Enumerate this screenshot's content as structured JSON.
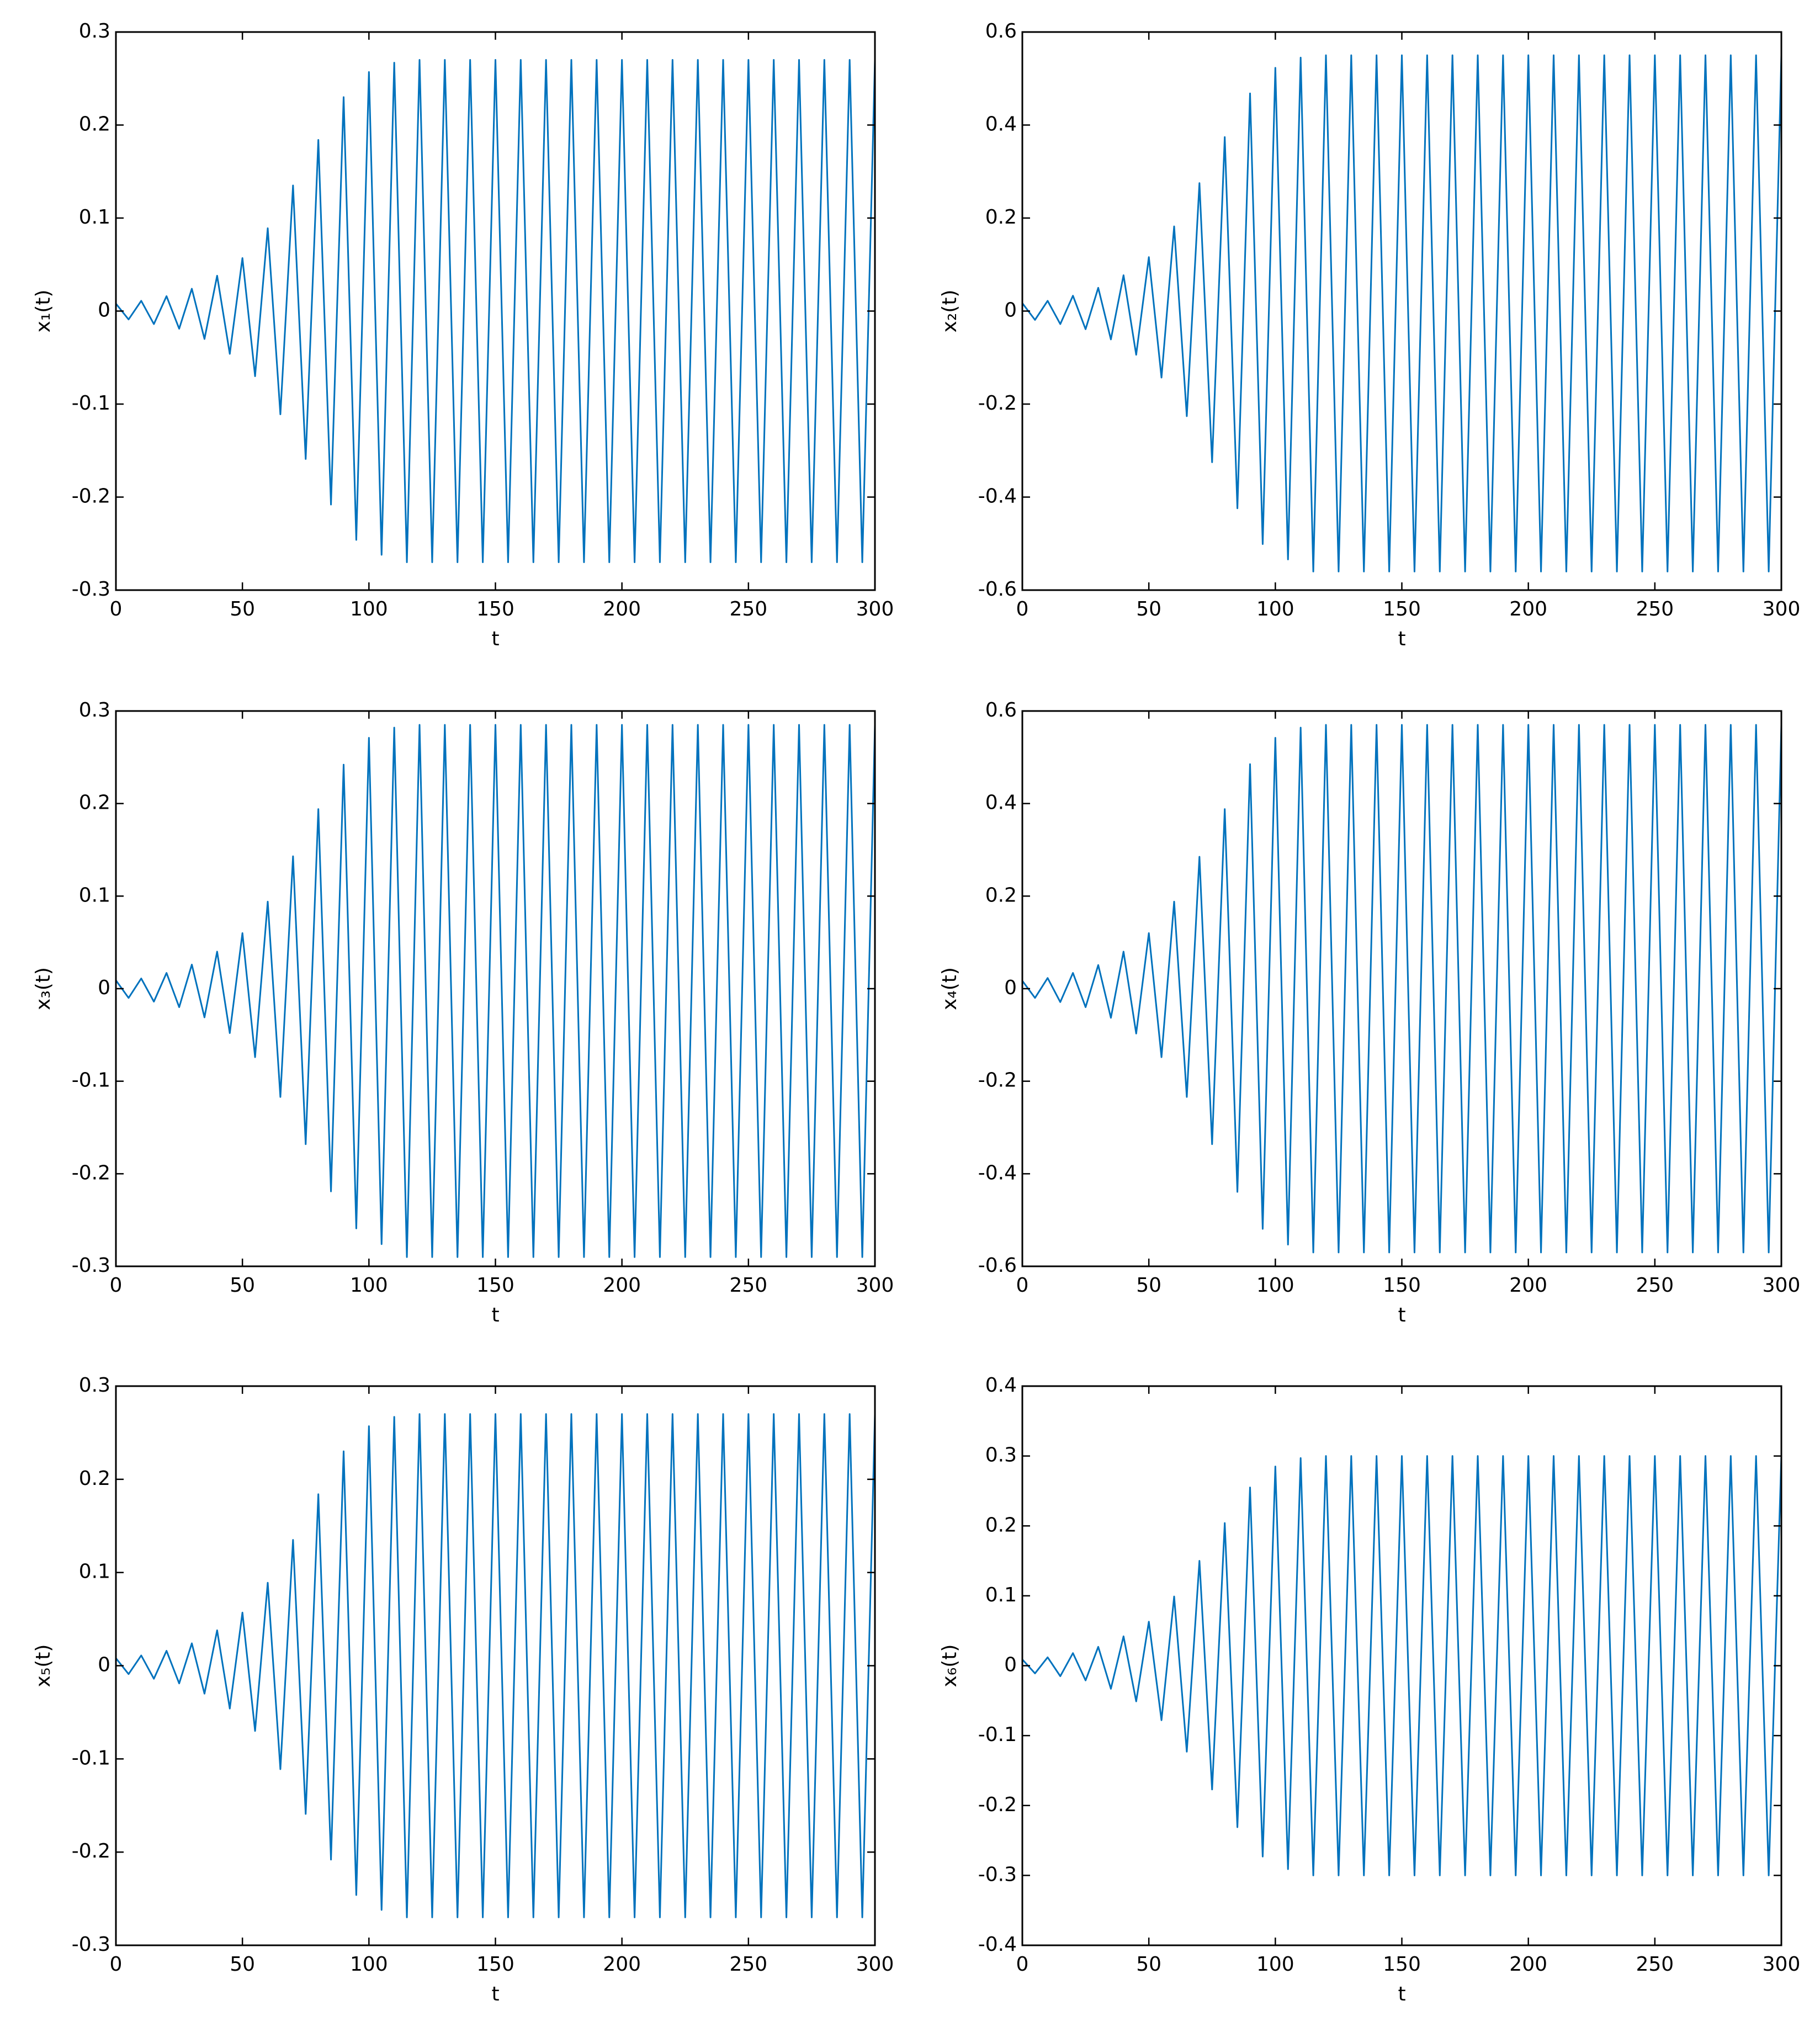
{
  "chart_data": [
    {
      "type": "line",
      "xlabel": "t",
      "ylabel": "x₁(t)",
      "color": "#0072bd",
      "x": [
        0,
        5,
        10,
        15,
        20,
        25,
        30,
        35,
        40,
        45,
        50,
        55,
        60,
        65,
        70,
        75,
        80,
        85,
        90,
        95,
        100,
        105,
        110,
        115,
        120,
        125,
        130,
        135,
        140,
        145,
        150,
        155,
        160,
        165,
        170,
        175,
        180,
        185,
        190,
        195,
        200,
        205,
        210,
        215,
        220,
        225,
        230,
        235,
        240,
        245,
        250,
        255,
        260,
        265,
        270,
        275,
        280,
        285,
        290,
        295,
        300
      ],
      "values": [
        0.008,
        -0.009,
        0.011,
        -0.014,
        0.016,
        -0.019,
        0.024,
        -0.03,
        0.038,
        -0.046,
        0.057,
        -0.07,
        0.089,
        -0.111,
        0.135,
        -0.159,
        0.184,
        -0.208,
        0.23,
        -0.246,
        0.257,
        -0.262,
        0.267,
        -0.27,
        0.27,
        -0.27,
        0.27,
        -0.27,
        0.27,
        -0.27,
        0.27,
        -0.27,
        0.27,
        -0.27,
        0.27,
        -0.27,
        0.27,
        -0.27,
        0.27,
        -0.27,
        0.27,
        -0.27,
        0.27,
        -0.27,
        0.27,
        -0.27,
        0.27,
        -0.27,
        0.27,
        -0.27,
        0.27,
        -0.27,
        0.27,
        -0.27,
        0.27,
        -0.27,
        0.27,
        -0.27,
        0.27,
        -0.27,
        0.27
      ],
      "xlim": [
        0,
        300
      ],
      "xticks": [
        0,
        50,
        100,
        150,
        200,
        250,
        300
      ],
      "ylim": [
        -0.3,
        0.3
      ],
      "yticks": [
        -0.3,
        -0.2,
        -0.1,
        0,
        0.1,
        0.2,
        0.3
      ]
    },
    {
      "type": "line",
      "xlabel": "t",
      "ylabel": "x₂(t)",
      "color": "#0072bd",
      "x": [
        0,
        5,
        10,
        15,
        20,
        25,
        30,
        35,
        40,
        45,
        50,
        55,
        60,
        65,
        70,
        75,
        80,
        85,
        90,
        95,
        100,
        105,
        110,
        115,
        120,
        125,
        130,
        135,
        140,
        145,
        150,
        155,
        160,
        165,
        170,
        175,
        180,
        185,
        190,
        195,
        200,
        205,
        210,
        215,
        220,
        225,
        230,
        235,
        240,
        245,
        250,
        255,
        260,
        265,
        270,
        275,
        280,
        285,
        290,
        295,
        300
      ],
      "values": [
        0.017,
        -0.019,
        0.022,
        -0.028,
        0.033,
        -0.039,
        0.05,
        -0.061,
        0.077,
        -0.094,
        0.116,
        -0.143,
        0.182,
        -0.226,
        0.275,
        -0.325,
        0.374,
        -0.424,
        0.468,
        -0.501,
        0.523,
        -0.534,
        0.545,
        -0.56,
        0.55,
        -0.56,
        0.55,
        -0.56,
        0.55,
        -0.56,
        0.55,
        -0.56,
        0.55,
        -0.56,
        0.55,
        -0.56,
        0.55,
        -0.56,
        0.55,
        -0.56,
        0.55,
        -0.56,
        0.55,
        -0.56,
        0.55,
        -0.56,
        0.55,
        -0.56,
        0.55,
        -0.56,
        0.55,
        -0.56,
        0.55,
        -0.56,
        0.55,
        -0.56,
        0.55,
        -0.56,
        0.55,
        -0.56,
        0.55
      ],
      "xlim": [
        0,
        300
      ],
      "xticks": [
        0,
        50,
        100,
        150,
        200,
        250,
        300
      ],
      "ylim": [
        -0.6,
        0.6
      ],
      "yticks": [
        -0.6,
        -0.4,
        -0.2,
        0,
        0.2,
        0.4,
        0.6
      ]
    },
    {
      "type": "line",
      "xlabel": "t",
      "ylabel": "x₃(t)",
      "color": "#0072bd",
      "x": [
        0,
        5,
        10,
        15,
        20,
        25,
        30,
        35,
        40,
        45,
        50,
        55,
        60,
        65,
        70,
        75,
        80,
        85,
        90,
        95,
        100,
        105,
        110,
        115,
        120,
        125,
        130,
        135,
        140,
        145,
        150,
        155,
        160,
        165,
        170,
        175,
        180,
        185,
        190,
        195,
        200,
        205,
        210,
        215,
        220,
        225,
        230,
        235,
        240,
        245,
        250,
        255,
        260,
        265,
        270,
        275,
        280,
        285,
        290,
        295,
        300
      ],
      "values": [
        0.009,
        -0.01,
        0.011,
        -0.014,
        0.017,
        -0.02,
        0.026,
        -0.031,
        0.04,
        -0.048,
        0.06,
        -0.074,
        0.094,
        -0.117,
        0.143,
        -0.168,
        0.194,
        -0.219,
        0.242,
        -0.259,
        0.271,
        -0.276,
        0.282,
        -0.29,
        0.285,
        -0.29,
        0.285,
        -0.29,
        0.285,
        -0.29,
        0.285,
        -0.29,
        0.285,
        -0.29,
        0.285,
        -0.29,
        0.285,
        -0.29,
        0.285,
        -0.29,
        0.285,
        -0.29,
        0.285,
        -0.29,
        0.285,
        -0.29,
        0.285,
        -0.29,
        0.285,
        -0.29,
        0.285,
        -0.29,
        0.285,
        -0.29,
        0.285,
        -0.29,
        0.285,
        -0.29,
        0.285,
        -0.29,
        0.285
      ],
      "xlim": [
        0,
        300
      ],
      "xticks": [
        0,
        50,
        100,
        150,
        200,
        250,
        300
      ],
      "ylim": [
        -0.3,
        0.3
      ],
      "yticks": [
        -0.3,
        -0.2,
        -0.1,
        0,
        0.1,
        0.2,
        0.3
      ]
    },
    {
      "type": "line",
      "xlabel": "t",
      "ylabel": "x₄(t)",
      "color": "#0072bd",
      "x": [
        0,
        5,
        10,
        15,
        20,
        25,
        30,
        35,
        40,
        45,
        50,
        55,
        60,
        65,
        70,
        75,
        80,
        85,
        90,
        95,
        100,
        105,
        110,
        115,
        120,
        125,
        130,
        135,
        140,
        145,
        150,
        155,
        160,
        165,
        170,
        175,
        180,
        185,
        190,
        195,
        200,
        205,
        210,
        215,
        220,
        225,
        230,
        235,
        240,
        245,
        250,
        255,
        260,
        265,
        270,
        275,
        280,
        285,
        290,
        295,
        300
      ],
      "values": [
        0.017,
        -0.02,
        0.023,
        -0.029,
        0.034,
        -0.04,
        0.051,
        -0.063,
        0.08,
        -0.097,
        0.12,
        -0.148,
        0.188,
        -0.234,
        0.285,
        -0.336,
        0.388,
        -0.439,
        0.485,
        -0.519,
        0.542,
        -0.553,
        0.564,
        -0.57,
        0.57,
        -0.57,
        0.57,
        -0.57,
        0.57,
        -0.57,
        0.57,
        -0.57,
        0.57,
        -0.57,
        0.57,
        -0.57,
        0.57,
        -0.57,
        0.57,
        -0.57,
        0.57,
        -0.57,
        0.57,
        -0.57,
        0.57,
        -0.57,
        0.57,
        -0.57,
        0.57,
        -0.57,
        0.57,
        -0.57,
        0.57,
        -0.57,
        0.57,
        -0.57,
        0.57,
        -0.57,
        0.57,
        -0.57,
        0.57
      ],
      "xlim": [
        0,
        300
      ],
      "xticks": [
        0,
        50,
        100,
        150,
        200,
        250,
        300
      ],
      "ylim": [
        -0.6,
        0.6
      ],
      "yticks": [
        -0.6,
        -0.4,
        -0.2,
        0,
        0.2,
        0.4,
        0.6
      ]
    },
    {
      "type": "line",
      "xlabel": "t",
      "ylabel": "x₅(t)",
      "color": "#0072bd",
      "x": [
        0,
        5,
        10,
        15,
        20,
        25,
        30,
        35,
        40,
        45,
        50,
        55,
        60,
        65,
        70,
        75,
        80,
        85,
        90,
        95,
        100,
        105,
        110,
        115,
        120,
        125,
        130,
        135,
        140,
        145,
        150,
        155,
        160,
        165,
        170,
        175,
        180,
        185,
        190,
        195,
        200,
        205,
        210,
        215,
        220,
        225,
        230,
        235,
        240,
        245,
        250,
        255,
        260,
        265,
        270,
        275,
        280,
        285,
        290,
        295,
        300
      ],
      "values": [
        0.008,
        -0.009,
        0.011,
        -0.014,
        0.016,
        -0.019,
        0.024,
        -0.03,
        0.038,
        -0.046,
        0.057,
        -0.07,
        0.089,
        -0.111,
        0.135,
        -0.159,
        0.184,
        -0.208,
        0.23,
        -0.246,
        0.257,
        -0.262,
        0.267,
        -0.27,
        0.27,
        -0.27,
        0.27,
        -0.27,
        0.27,
        -0.27,
        0.27,
        -0.27,
        0.27,
        -0.27,
        0.27,
        -0.27,
        0.27,
        -0.27,
        0.27,
        -0.27,
        0.27,
        -0.27,
        0.27,
        -0.27,
        0.27,
        -0.27,
        0.27,
        -0.27,
        0.27,
        -0.27,
        0.27,
        -0.27,
        0.27,
        -0.27,
        0.27,
        -0.27,
        0.27,
        -0.27,
        0.27,
        -0.27,
        0.27
      ],
      "xlim": [
        0,
        300
      ],
      "xticks": [
        0,
        50,
        100,
        150,
        200,
        250,
        300
      ],
      "ylim": [
        -0.3,
        0.3
      ],
      "yticks": [
        -0.3,
        -0.2,
        -0.1,
        0,
        0.1,
        0.2,
        0.3
      ]
    },
    {
      "type": "line",
      "xlabel": "t",
      "ylabel": "x₆(t)",
      "color": "#0072bd",
      "x": [
        0,
        5,
        10,
        15,
        20,
        25,
        30,
        35,
        40,
        45,
        50,
        55,
        60,
        65,
        70,
        75,
        80,
        85,
        90,
        95,
        100,
        105,
        110,
        115,
        120,
        125,
        130,
        135,
        140,
        145,
        150,
        155,
        160,
        165,
        170,
        175,
        180,
        185,
        190,
        195,
        200,
        205,
        210,
        215,
        220,
        225,
        230,
        235,
        240,
        245,
        250,
        255,
        260,
        265,
        270,
        275,
        280,
        285,
        290,
        295,
        300
      ],
      "values": [
        0.009,
        -0.011,
        0.012,
        -0.015,
        0.018,
        -0.021,
        0.027,
        -0.033,
        0.042,
        -0.051,
        0.063,
        -0.078,
        0.099,
        -0.123,
        0.15,
        -0.177,
        0.204,
        -0.231,
        0.255,
        -0.273,
        0.285,
        -0.291,
        0.297,
        -0.3,
        0.3,
        -0.3,
        0.3,
        -0.3,
        0.3,
        -0.3,
        0.3,
        -0.3,
        0.3,
        -0.3,
        0.3,
        -0.3,
        0.3,
        -0.3,
        0.3,
        -0.3,
        0.3,
        -0.3,
        0.3,
        -0.3,
        0.3,
        -0.3,
        0.3,
        -0.3,
        0.3,
        -0.3,
        0.3,
        -0.3,
        0.3,
        -0.3,
        0.3,
        -0.3,
        0.3,
        -0.3,
        0.3,
        -0.3,
        0.3
      ],
      "xlim": [
        0,
        300
      ],
      "xticks": [
        0,
        50,
        100,
        150,
        200,
        250,
        300
      ],
      "ylim": [
        -0.4,
        0.4
      ],
      "yticks": [
        -0.4,
        -0.3,
        -0.2,
        -0.1,
        0,
        0.1,
        0.2,
        0.3,
        0.4
      ]
    }
  ]
}
